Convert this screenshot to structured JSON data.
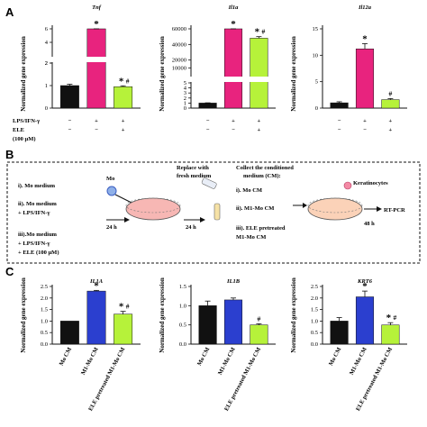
{
  "panels": {
    "A": {
      "letter": "A"
    },
    "B": {
      "letter": "B"
    },
    "C": {
      "letter": "C"
    }
  },
  "colors": {
    "black": "#111111",
    "pink": "#e8237e",
    "green": "#b6f23a",
    "blue": "#2b3fcf",
    "dish": "#f7b7b4"
  },
  "chart_data": [
    {
      "type": "bar",
      "panel": "A",
      "title": "Tnf",
      "ylabel": "Normalized gene expression",
      "axis_break": true,
      "ylim_lower": [
        0,
        2
      ],
      "ylim_upper": [
        2,
        6
      ],
      "ticks_lower": [
        "0",
        "1",
        "2"
      ],
      "ticks_upper": [
        "2",
        "4",
        "6"
      ],
      "bars": [
        {
          "value": 1.0,
          "error": 0.06,
          "color": "#111111",
          "mark": ""
        },
        {
          "value": 6.2,
          "error": 0.3,
          "color": "#e8237e",
          "mark": "*"
        },
        {
          "value": 0.95,
          "error": 0.04,
          "color": "#b6f23a",
          "mark": "*#"
        }
      ]
    },
    {
      "type": "bar",
      "panel": "A",
      "title": "Il1a",
      "ylabel": "Normalized gene expression",
      "axis_break": true,
      "ylim_lower": [
        0,
        5
      ],
      "ylim_upper": [
        5,
        60000
      ],
      "ticks_lower": [
        "0",
        "1",
        "2",
        "3",
        "4",
        "5"
      ],
      "ticks_upper": [
        "10000",
        "20000",
        "40000",
        "60000"
      ],
      "bars": [
        {
          "value": 1.0,
          "error": 0.05,
          "color": "#111111",
          "mark": ""
        },
        {
          "value": 68000,
          "error": 1500,
          "color": "#e8237e",
          "mark": "*"
        },
        {
          "value": 48000,
          "error": 2000,
          "color": "#b6f23a",
          "mark": "*#"
        }
      ]
    },
    {
      "type": "bar",
      "panel": "A",
      "title": "Il12a",
      "ylabel": "Normalized gene expression",
      "axis_break": false,
      "ylim": [
        0,
        15
      ],
      "ticks": [
        "0",
        "5",
        "10",
        "15"
      ],
      "bars": [
        {
          "value": 1.0,
          "error": 0.2,
          "color": "#111111",
          "mark": ""
        },
        {
          "value": 11.2,
          "error": 1.0,
          "color": "#e8237e",
          "mark": "*"
        },
        {
          "value": 1.6,
          "error": 0.2,
          "color": "#b6f23a",
          "mark": "#"
        }
      ]
    },
    {
      "type": "bar",
      "panel": "C",
      "title": "IL1A",
      "ylabel": "Normalized gene expression",
      "ylim": [
        0,
        2.5
      ],
      "ticks": [
        "0.0",
        "0.5",
        "1.0",
        "1.5",
        "2.0",
        "2.5"
      ],
      "categories": [
        "Mo CM",
        "M1-Mo CM",
        "ELE pretreated M1-Mo CM"
      ],
      "bars": [
        {
          "value": 1.0,
          "error": 0.0,
          "color": "#111111",
          "mark": ""
        },
        {
          "value": 2.3,
          "error": 0.03,
          "color": "#2b3fcf",
          "mark": "*"
        },
        {
          "value": 1.3,
          "error": 0.12,
          "color": "#b6f23a",
          "mark": "*#"
        }
      ]
    },
    {
      "type": "bar",
      "panel": "C",
      "title": "IL1B",
      "ylabel": "Normalized gene expression",
      "ylim": [
        0,
        1.5
      ],
      "ticks": [
        "0.0",
        "0.5",
        "1.0",
        "1.5"
      ],
      "categories": [
        "Mo CM",
        "M1-Mo CM",
        "ELE pretreated M1-Mo CM"
      ],
      "bars": [
        {
          "value": 1.0,
          "error": 0.12,
          "color": "#111111",
          "mark": ""
        },
        {
          "value": 1.15,
          "error": 0.05,
          "color": "#2b3fcf",
          "mark": ""
        },
        {
          "value": 0.5,
          "error": 0.03,
          "color": "#b6f23a",
          "mark": "#"
        }
      ]
    },
    {
      "type": "bar",
      "panel": "C",
      "title": "KRT6",
      "ylabel": "Normalized gene expression",
      "ylim": [
        0,
        2.5
      ],
      "ticks": [
        "0.0",
        "0.5",
        "1.0",
        "1.5",
        "2.0",
        "2.5"
      ],
      "categories": [
        "Mo CM",
        "M1-Mo CM",
        "ELE pretreated M1-Mo CM"
      ],
      "bars": [
        {
          "value": 1.0,
          "error": 0.15,
          "color": "#111111",
          "mark": ""
        },
        {
          "value": 2.05,
          "error": 0.25,
          "color": "#2b3fcf",
          "mark": "*"
        },
        {
          "value": 0.83,
          "error": 0.1,
          "color": "#b6f23a",
          "mark": "*#"
        }
      ]
    }
  ],
  "treatment_table": {
    "row1_label": "LPS/IFN-γ",
    "row2_label": "ELE",
    "row2_sub": "(100 μM)",
    "row1_signs": [
      "−",
      "+",
      "+"
    ],
    "row2_signs": [
      "−",
      "−",
      "+"
    ]
  },
  "schematic": {
    "left_items": [
      "i). Mo medium",
      "ii). Mo medium",
      "+ LPS/IFN-γ",
      "iii).Mo medium",
      "+ LPS/IFN-γ",
      "+ ELE (100 μM)"
    ],
    "cell_label": "Mo",
    "replace_title_1": "Replace with",
    "replace_title_2": "fresh medium",
    "time_1": "24 h",
    "time_2": "24 h",
    "collect_title_1": "Collect the conditioned",
    "collect_title_2": "medium (CM):",
    "cm_items": [
      "i). Mo CM",
      "ii). M1-Mo CM",
      "iii). ELE pretreated",
      "M1-Mo CM"
    ],
    "keratinocytes": "Keratinocytes",
    "time_3": "48 h",
    "readout": "RT-PCR"
  }
}
